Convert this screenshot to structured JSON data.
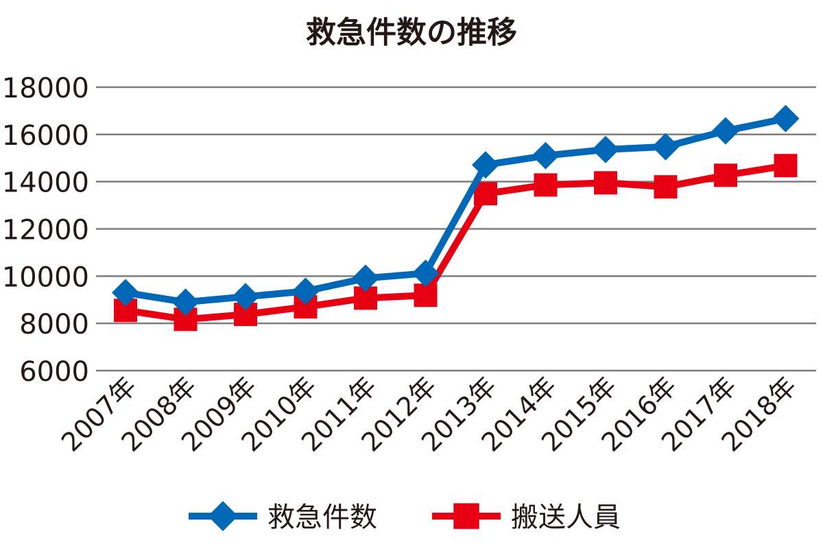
{
  "chart_data": {
    "type": "line",
    "title": "救急件数の推移",
    "xlabel": "",
    "ylabel": "",
    "ylim": [
      6000,
      18000
    ],
    "yticks": [
      6000,
      8000,
      10000,
      12000,
      14000,
      16000,
      18000
    ],
    "grid": true,
    "legend_position": "bottom",
    "categories": [
      "2007年",
      "2008年",
      "2009年",
      "2010年",
      "2011年",
      "2012年",
      "2013年",
      "2014年",
      "2015年",
      "2016年",
      "2017年",
      "2018年"
    ],
    "series": [
      {
        "name": "救急件数",
        "color": "#0068b7",
        "marker": "diamond",
        "values": [
          9300,
          8900,
          9130,
          9360,
          9910,
          10120,
          14710,
          15100,
          15360,
          15480,
          16150,
          16670
        ]
      },
      {
        "name": "搬送人員",
        "color": "#e60012",
        "marker": "square",
        "values": [
          8550,
          8170,
          8380,
          8700,
          9070,
          9190,
          13490,
          13860,
          13950,
          13780,
          14270,
          14680
        ]
      }
    ]
  }
}
